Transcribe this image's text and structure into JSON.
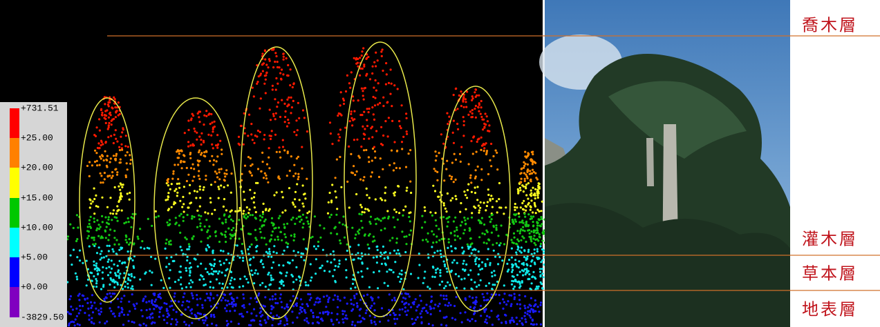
{
  "legend": {
    "labels": [
      "+731.51",
      "+25.00",
      "+20.00",
      "+15.00",
      "+10.00",
      "+5.00",
      "+0.00",
      "-3829.50"
    ]
  },
  "layers": [
    "喬木層",
    "灌木層",
    "草本層",
    "地表層"
  ]
}
